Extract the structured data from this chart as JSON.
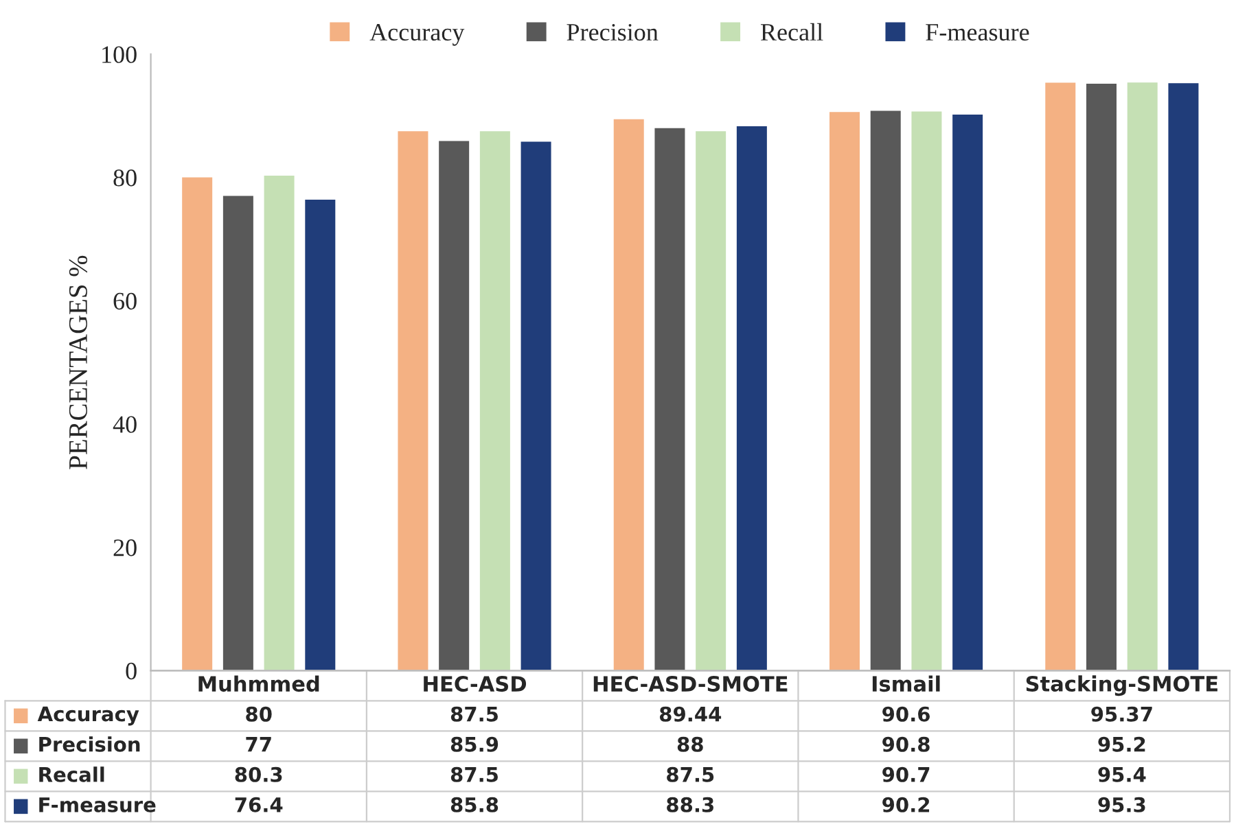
{
  "chart_data": {
    "type": "bar",
    "ylabel": "PERCENTAGES %",
    "categories": [
      "Muhmmed",
      "HEC-ASD",
      "HEC-ASD-SMOTE",
      "Ismail",
      "Stacking-SMOTE"
    ],
    "series": [
      {
        "name": "Accuracy",
        "color": "#f4b183",
        "values": [
          80,
          87.5,
          89.44,
          90.6,
          95.37
        ]
      },
      {
        "name": "Precision",
        "color": "#595959",
        "values": [
          77,
          85.9,
          88,
          90.8,
          95.2
        ]
      },
      {
        "name": "Recall",
        "color": "#c5e0b4",
        "values": [
          80.3,
          87.5,
          87.5,
          90.7,
          95.4
        ]
      },
      {
        "name": "F-measure",
        "color": "#203d7a",
        "values": [
          76.4,
          85.8,
          88.3,
          90.2,
          95.3
        ]
      }
    ],
    "ylim": [
      0,
      100
    ],
    "yticks": [
      0,
      20,
      40,
      60,
      80,
      100
    ],
    "grid": false,
    "legend": "top",
    "data_labels": true
  }
}
